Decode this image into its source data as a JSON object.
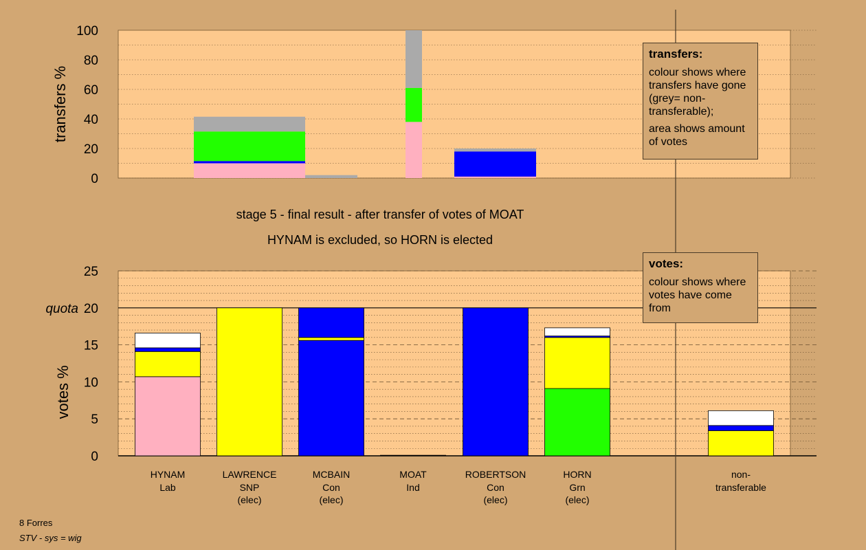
{
  "colors": {
    "background": "#d2a773",
    "plot_background": "#fdc98d",
    "Lab": "#ffb0c0",
    "SNP": "#ffff00",
    "Con": "#0000ff",
    "Grn": "#22ff00",
    "Ind": "#b0b0b0",
    "non_transferable": "#ffffff",
    "non_transferable_transfer": "#aaaaaa"
  },
  "stage_title": {
    "line1": "stage 5 - final result - after transfer of votes of MOAT",
    "line2": "HYNAM is excluded, so HORN is elected"
  },
  "legend_transfers": {
    "title": "transfers:",
    "text1": "colour shows where transfers have gone (grey= non-transferable);",
    "text2": "area shows amount of votes"
  },
  "legend_votes": {
    "title": "votes:",
    "text1": "colour shows where votes have come from"
  },
  "footer": {
    "line1": "8 Forres",
    "line2": "STV - sys = wig"
  },
  "candidates": [
    {
      "name": "HYNAM",
      "party": "Lab",
      "status": ""
    },
    {
      "name": "LAWRENCE",
      "party": "SNP",
      "status": "(elec)"
    },
    {
      "name": "MCBAIN",
      "party": "Con",
      "status": "(elec)"
    },
    {
      "name": "MOAT",
      "party": "Ind",
      "status": ""
    },
    {
      "name": "ROBERTSON",
      "party": "Con",
      "status": "(elec)"
    },
    {
      "name": "HORN",
      "party": "Grn",
      "status": "(elec)"
    },
    {
      "name": "non-",
      "party": "transferable",
      "status": ""
    }
  ],
  "chart_data": [
    {
      "type": "bar",
      "subtype": "stacked-variable-width",
      "ylabel": "transfers %",
      "ylim": [
        0,
        100
      ],
      "yticks": [
        0,
        20,
        40,
        60,
        80,
        100
      ],
      "grid": "dotted horizontal",
      "legend_position": "top-right",
      "bars": [
        {
          "x_range": [
            282,
            444
          ],
          "stack": [
            {
              "party": "Lab",
              "value": 10
            },
            {
              "party": "Con",
              "value": 1.5
            },
            {
              "party": "Grn",
              "value": 20
            },
            {
              "party": "non_transferable_transfer",
              "value": 10
            }
          ]
        },
        {
          "x_range": [
            444,
            520
          ],
          "stack": [
            {
              "party": "non_transferable_transfer",
              "value": 2
            }
          ]
        },
        {
          "x_range": [
            590,
            614
          ],
          "stack": [
            {
              "party": "Lab",
              "value": 38
            },
            {
              "party": "Grn",
              "value": 23
            },
            {
              "party": "non_transferable_transfer",
              "value": 39
            }
          ]
        },
        {
          "x_range": [
            661,
            780
          ],
          "stack": [
            {
              "party": "Lab",
              "value": 1
            },
            {
              "party": "Con",
              "value": 17
            },
            {
              "party": "non_transferable_transfer",
              "value": 2
            }
          ]
        }
      ]
    },
    {
      "type": "bar",
      "subtype": "stacked",
      "ylabel": "votes %",
      "ylim": [
        0,
        25
      ],
      "yticks": [
        0,
        5,
        10,
        15,
        20,
        25
      ],
      "quota": {
        "label": "quota",
        "value": 20
      },
      "grid": "dotted/dashed horizontal",
      "legend_position": "top-right",
      "bars": [
        {
          "candidate": "HYNAM",
          "stack": [
            {
              "party": "Lab",
              "value": 10.7
            },
            {
              "party": "SNP",
              "value": 3.4
            },
            {
              "party": "Con",
              "value": 0.5
            },
            {
              "party": "non_transferable",
              "value": 2.0
            }
          ]
        },
        {
          "candidate": "LAWRENCE",
          "stack": [
            {
              "party": "SNP",
              "value": 20
            }
          ]
        },
        {
          "candidate": "MCBAIN",
          "stack": [
            {
              "party": "Con",
              "value": 15.6
            },
            {
              "party": "SNP",
              "value": 0.4
            },
            {
              "party": "Con",
              "value": 4.0
            }
          ]
        },
        {
          "candidate": "MOAT",
          "stack": []
        },
        {
          "candidate": "ROBERTSON",
          "stack": [
            {
              "party": "Con",
              "value": 20
            }
          ]
        },
        {
          "candidate": "HORN",
          "stack": [
            {
              "party": "Grn",
              "value": 9.1
            },
            {
              "party": "SNP",
              "value": 6.9
            },
            {
              "party": "Con",
              "value": 0.2
            },
            {
              "party": "non_transferable",
              "value": 1.1
            }
          ]
        },
        {
          "candidate": "non-transferable",
          "stack": [
            {
              "party": "SNP",
              "value": 3.4
            },
            {
              "party": "Con",
              "value": 0.7
            },
            {
              "party": "non_transferable",
              "value": 2.0
            }
          ]
        }
      ]
    }
  ]
}
